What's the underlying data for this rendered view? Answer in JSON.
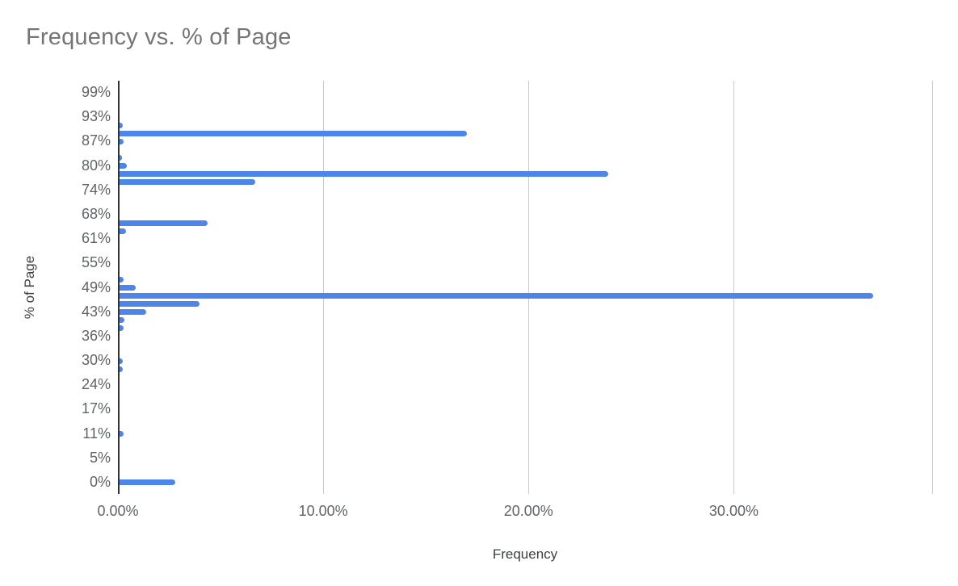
{
  "chart_data": {
    "type": "bar",
    "orientation": "horizontal",
    "title": "Frequency vs. % of Page",
    "xlabel": "Frequency",
    "ylabel": "% of Page",
    "xlim": [
      0,
      39.7
    ],
    "x_ticks": [
      {
        "value": 0,
        "label": "0.00%"
      },
      {
        "value": 10,
        "label": "10.00%"
      },
      {
        "value": 20,
        "label": "20.00%"
      },
      {
        "value": 30,
        "label": "30.00%"
      }
    ],
    "gridlines": {
      "vertical_values": [
        10,
        20,
        30
      ],
      "right_border": true
    },
    "y_axis": {
      "total_rows": 49,
      "rows_per_labeled_tick": 3,
      "tick_labels": [
        "99%",
        "93%",
        "87%",
        "80%",
        "74%",
        "68%",
        "61%",
        "55%",
        "49%",
        "43%",
        "36%",
        "30%",
        "24%",
        "17%",
        "11%",
        "5%",
        "0%"
      ]
    },
    "bars": [
      {
        "row": 4,
        "page_pct": "91%",
        "frequency": 0.15
      },
      {
        "row": 5,
        "page_pct": "89%",
        "frequency": 16.9
      },
      {
        "row": 6,
        "page_pct": "87%",
        "frequency": 0.2
      },
      {
        "row": 8,
        "page_pct": "82%",
        "frequency": 0.1
      },
      {
        "row": 9,
        "page_pct": "80%",
        "frequency": 0.35
      },
      {
        "row": 10,
        "page_pct": "78%",
        "frequency": 23.8
      },
      {
        "row": 11,
        "page_pct": "76%",
        "frequency": 6.6
      },
      {
        "row": 16,
        "page_pct": "66%",
        "frequency": 4.3
      },
      {
        "row": 17,
        "page_pct": "63%",
        "frequency": 0.3
      },
      {
        "row": 23,
        "page_pct": "51%",
        "frequency": 0.2
      },
      {
        "row": 24,
        "page_pct": "49%",
        "frequency": 0.8
      },
      {
        "row": 25,
        "page_pct": "47%",
        "frequency": 36.7
      },
      {
        "row": 26,
        "page_pct": "45%",
        "frequency": 3.9
      },
      {
        "row": 27,
        "page_pct": "43%",
        "frequency": 1.3
      },
      {
        "row": 28,
        "page_pct": "41%",
        "frequency": 0.25
      },
      {
        "row": 29,
        "page_pct": "38%",
        "frequency": 0.2
      },
      {
        "row": 33,
        "page_pct": "30%",
        "frequency": 0.15
      },
      {
        "row": 34,
        "page_pct": "28%",
        "frequency": 0.15
      },
      {
        "row": 42,
        "page_pct": "11%",
        "frequency": 0.2
      },
      {
        "row": 48,
        "page_pct": "0%",
        "frequency": 2.7
      }
    ],
    "colors": {
      "bar": "#4d86e8",
      "gridline": "#cccccc",
      "axis_line": "#333333",
      "title": "#757575",
      "tick_labels": "#5f6368",
      "axis_titles": "#3c4043"
    }
  }
}
